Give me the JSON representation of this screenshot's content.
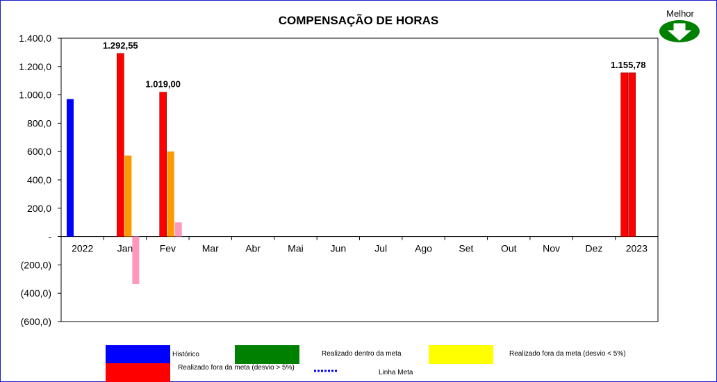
{
  "chart_data": {
    "type": "bar",
    "title": "COMPENSAÇÃO DE HORAS",
    "categories": [
      "2022",
      "Jan",
      "Fev",
      "Mar",
      "Abr",
      "Mai",
      "Jun",
      "Jul",
      "Ago",
      "Set",
      "Out",
      "Nov",
      "Dez",
      "2023"
    ],
    "ylim": [
      -600,
      1400
    ],
    "yticks": [
      {
        "value": 1400,
        "label": "1.400,0"
      },
      {
        "value": 1200,
        "label": "1.200,0"
      },
      {
        "value": 1000,
        "label": "1.000,0"
      },
      {
        "value": 800,
        "label": "800,0"
      },
      {
        "value": 600,
        "label": "600,0"
      },
      {
        "value": 400,
        "label": "400,0"
      },
      {
        "value": 200,
        "label": "200,0"
      },
      {
        "value": 0,
        "label": "-"
      },
      {
        "value": -200,
        "label": "(200,0)"
      },
      {
        "value": -400,
        "label": "(400,0)"
      },
      {
        "value": -600,
        "label": "(600,0)"
      }
    ],
    "series": [
      {
        "name": "Histórico",
        "color": "#0000ff",
        "values": [
          970,
          null,
          null,
          null,
          null,
          null,
          null,
          null,
          null,
          null,
          null,
          null,
          null,
          null
        ]
      },
      {
        "name": "Realizado fora da meta (desvio > 5%)",
        "color": "#ff0000",
        "values": [
          null,
          1292.55,
          1019.0,
          null,
          null,
          null,
          null,
          null,
          null,
          null,
          null,
          null,
          null,
          1155.78
        ]
      },
      {
        "name": "Orange",
        "color": "#ff9900",
        "values": [
          null,
          572,
          600,
          null,
          null,
          null,
          null,
          null,
          null,
          null,
          null,
          null,
          null,
          null
        ]
      },
      {
        "name": "Pink",
        "color": "#ff99bb",
        "values": [
          null,
          -335,
          100,
          null,
          null,
          null,
          null,
          null,
          null,
          null,
          null,
          null,
          null,
          null
        ]
      }
    ],
    "data_labels": [
      {
        "category": "Jan",
        "text": "1.292,55",
        "value": 1292.55
      },
      {
        "category": "Fev",
        "text": "1.019,00",
        "value": 1019.0
      },
      {
        "category": "2023",
        "text": "1.155,78",
        "value": 1155.78
      }
    ],
    "legend": [
      {
        "label": "Histórico",
        "color": "#0000ff",
        "kind": "bar"
      },
      {
        "label": "Realizado dentro da meta",
        "color": "#008000",
        "kind": "bar"
      },
      {
        "label": "Realizado fora da meta (desvio < 5%)",
        "color": "#ffff00",
        "kind": "bar"
      },
      {
        "label": "Realizado fora da meta (desvio > 5%)",
        "color": "#ff0000",
        "kind": "bar"
      },
      {
        "label": "Linha Meta",
        "color": "#0000ff",
        "kind": "dotted-line"
      }
    ]
  },
  "indicator": {
    "label": "Melhor",
    "icon": "down-arrow-icon",
    "color": "#008000"
  }
}
